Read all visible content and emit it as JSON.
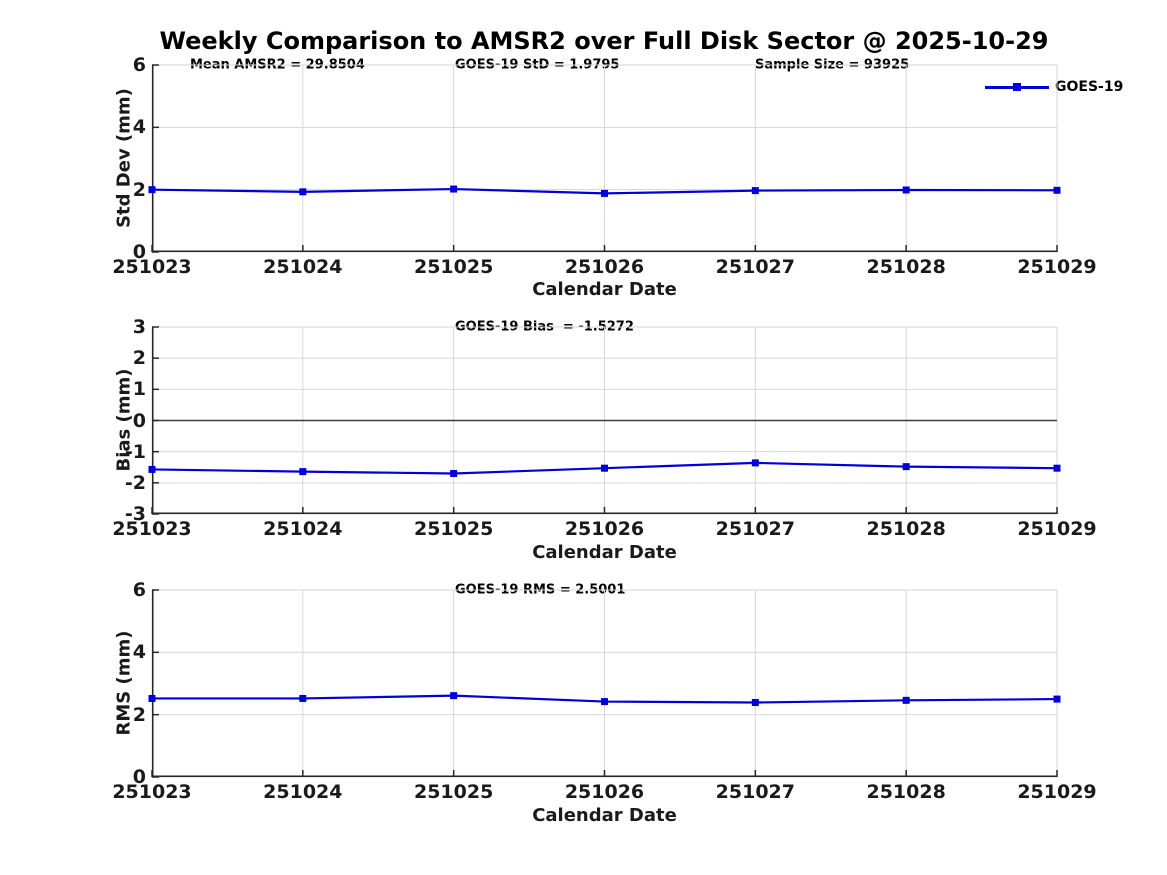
{
  "title": "Weekly Comparison to AMSR2 over Full Disk Sector @ 2025-10-29",
  "legend": {
    "label": "GOES-19",
    "position": "top-right-outside"
  },
  "colors": {
    "line": "#0000dd",
    "grid": "#d6d6d6",
    "axis": "#262626",
    "zero_line": "#3c3c3c",
    "background": "#ffffff",
    "text": "#000000"
  },
  "annotations": {
    "mean_amsr2": "Mean AMSR2 = 29.8504",
    "goes19_std": "GOES-19 StD = 1.9795",
    "sample_size": "Sample Size = 93925",
    "goes19_bias": "GOES-19 Bias  = -1.5272",
    "goes19_rms": "GOES-19 RMS = 2.5001"
  },
  "chart_data": [
    {
      "type": "line",
      "title": "",
      "xlabel": "Calendar Date",
      "ylabel": "Std Dev (mm)",
      "categories": [
        "251023",
        "251024",
        "251025",
        "251026",
        "251027",
        "251028",
        "251029"
      ],
      "series": [
        {
          "name": "GOES-19",
          "values": [
            2.0,
            1.93,
            2.02,
            1.88,
            1.97,
            1.99,
            1.98
          ]
        }
      ],
      "ylim": [
        0,
        6
      ],
      "yticks": [
        0,
        2,
        4,
        6
      ],
      "grid": true,
      "zero_line": false,
      "marker": "square"
    },
    {
      "type": "line",
      "title": "",
      "xlabel": "Calendar Date",
      "ylabel": "Bias (mm)",
      "categories": [
        "251023",
        "251024",
        "251025",
        "251026",
        "251027",
        "251028",
        "251029"
      ],
      "series": [
        {
          "name": "GOES-19",
          "values": [
            -1.57,
            -1.64,
            -1.7,
            -1.53,
            -1.36,
            -1.48,
            -1.53
          ]
        }
      ],
      "ylim": [
        -3,
        3
      ],
      "yticks": [
        -3,
        -2,
        -1,
        0,
        1,
        2,
        3
      ],
      "grid": true,
      "zero_line": true,
      "marker": "square"
    },
    {
      "type": "line",
      "title": "",
      "xlabel": "Calendar Date",
      "ylabel": "RMS (mm)",
      "categories": [
        "251023",
        "251024",
        "251025",
        "251026",
        "251027",
        "251028",
        "251029"
      ],
      "series": [
        {
          "name": "GOES-19",
          "values": [
            2.52,
            2.52,
            2.61,
            2.42,
            2.39,
            2.46,
            2.5
          ]
        }
      ],
      "ylim": [
        0,
        6
      ],
      "yticks": [
        0,
        2,
        4,
        6
      ],
      "grid": true,
      "zero_line": false,
      "marker": "square"
    }
  ]
}
